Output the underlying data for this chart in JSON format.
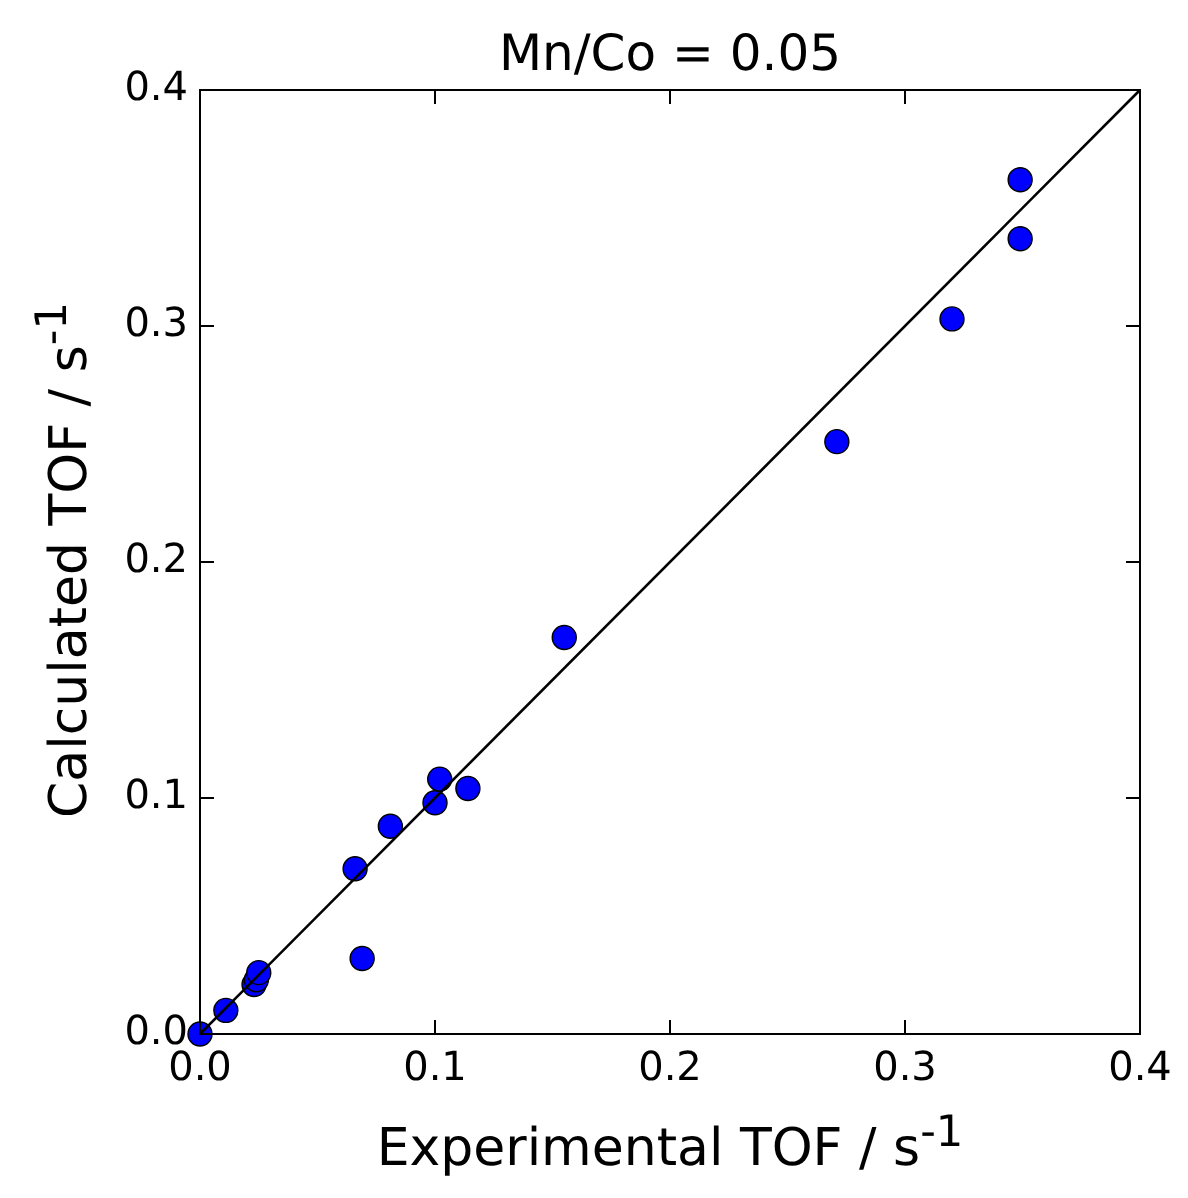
{
  "chart_data": {
    "type": "scatter",
    "title": "Mn/Co = 0.05",
    "xlabel": "Experimental TOF / s$^{-1}$",
    "ylabel": "Calculated TOF / s$^{-1}$",
    "xlim": [
      0,
      0.4
    ],
    "ylim": [
      0,
      0.4
    ],
    "xticks": [
      {
        "value": 0,
        "label": "0.0"
      },
      0.1,
      0.2,
      0.3,
      0.4
    ],
    "yticks": [
      {
        "value": 0,
        "label": "0.0"
      },
      0.1,
      0.2,
      0.3,
      0.4
    ],
    "series": [
      {
        "type": "scatter",
        "color": "#0000ff",
        "marker": "circle",
        "x": [
          0,
          0.011,
          0.023,
          0.024,
          0.025,
          0.066,
          0.069,
          0.081,
          0.1,
          0.102,
          0.114,
          0.155,
          0.271,
          0.32,
          0.349,
          0.349
        ],
        "values": [
          0,
          0.01,
          0.021,
          0.023,
          0.026,
          0.07,
          0.032,
          0.088,
          0.098,
          0.108,
          0.104,
          0.168,
          0.251,
          0.303,
          0.337,
          0.362
        ]
      },
      {
        "type": "line",
        "color": "#000000",
        "marker": "none",
        "x": [
          0,
          0.4
        ],
        "values": [
          0,
          0.4
        ]
      }
    ]
  }
}
